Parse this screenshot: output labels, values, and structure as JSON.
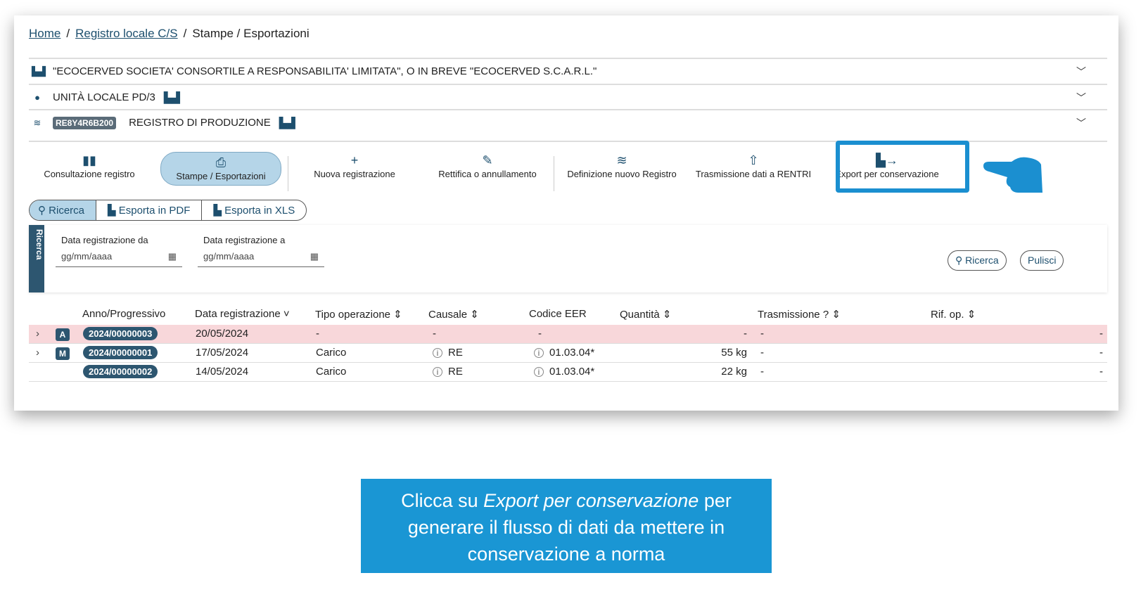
{
  "breadcrumb": {
    "home": "Home",
    "registro": "Registro locale C/S",
    "current": "Stampe / Esportazioni"
  },
  "accordions": [
    {
      "icon": "factory-icon",
      "label": "\"ECOCERVED SOCIETA' CONSORTILE A RESPONSABILITA' LIMITATA\", O IN BREVE \"ECOCERVED S.C.A.R.L.\""
    },
    {
      "icon": "map-pin-icon",
      "label": "UNITÀ LOCALE PD/3"
    },
    {
      "icon": "layers-icon",
      "tag": "RE8Y4R6B200",
      "label": "REGISTRO DI PRODUZIONE"
    }
  ],
  "toolbar": [
    {
      "icon": "book-icon",
      "label": "Consultazione registro"
    },
    {
      "icon": "printer-icon",
      "label": "Stampe / Esportazioni",
      "selected": true
    },
    {
      "icon": "plus-icon",
      "label": "Nuova registrazione"
    },
    {
      "icon": "edit-icon",
      "label": "Rettifica o annullamento"
    },
    {
      "icon": "layers-icon",
      "label": "Definizione nuovo Registro"
    },
    {
      "icon": "upload-icon",
      "label": "Trasmissione dati a RENTRI"
    },
    {
      "icon": "file-export-icon",
      "label": "Export per conservazione",
      "highlighted": true
    }
  ],
  "subtabs": [
    "Ricerca",
    "Esporta in PDF",
    "Esporta in XLS"
  ],
  "filter": {
    "side_label": "Ricerca",
    "from_label": "Data registrazione da",
    "to_label": "Data registrazione a",
    "placeholder": "gg/mm/aaaa",
    "search": "Ricerca",
    "clear": "Pulisci"
  },
  "table": {
    "headers": [
      "Anno/Progressivo",
      "Data registrazione",
      "Tipo operazione",
      "Causale",
      "Codice EER",
      "Quantità",
      "Trasmissione",
      "Rif. op."
    ],
    "rows": [
      {
        "type": "A",
        "num": "2024/00000003",
        "date": "20/05/2024",
        "op": "-",
        "causale": "-",
        "eer": "-",
        "qty": "-",
        "tx": "-",
        "rif": "-"
      },
      {
        "type": "M",
        "num": "2024/00000001",
        "date": "17/05/2024",
        "op": "Carico",
        "causale": "RE",
        "eer": "01.03.04*",
        "qty": "55 kg",
        "tx": "-",
        "rif": "-"
      },
      {
        "type": "",
        "num": "2024/00000002",
        "date": "14/05/2024",
        "op": "Carico",
        "causale": "RE",
        "eer": "01.03.04*",
        "qty": "22 kg",
        "tx": "-",
        "rif": "-"
      }
    ]
  },
  "caption": {
    "pre": "Clicca su ",
    "em": "Export per conservazione",
    "post": " per generare il flusso di dati da mettere in conservazione a norma"
  },
  "colors": {
    "highlight": "#1b8fd0",
    "badge": "#2d5670",
    "caption_bg": "#1a96d4"
  }
}
